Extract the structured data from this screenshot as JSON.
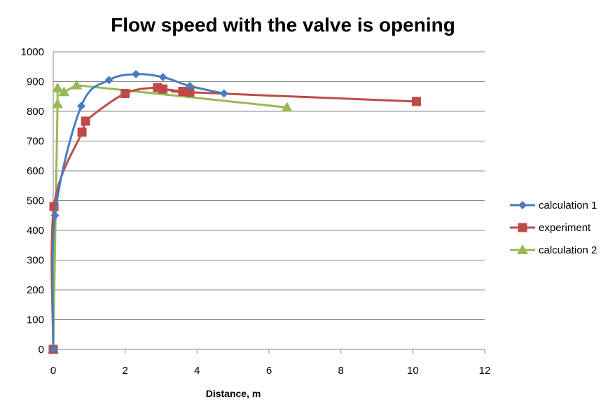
{
  "chart_data": {
    "type": "scatter",
    "title": "Flow speed with the valve is opening",
    "xlabel": "Distance, m",
    "ylabel": "",
    "xlim": [
      0,
      12
    ],
    "ylim": [
      0,
      1000
    ],
    "xticks": [
      0,
      2,
      4,
      6,
      8,
      10,
      12
    ],
    "yticks": [
      0,
      100,
      200,
      300,
      400,
      500,
      600,
      700,
      800,
      900,
      1000
    ],
    "grid": "horizontal",
    "legend_position": "right",
    "series": [
      {
        "name": "calculation 1",
        "color": "#4a7ebb",
        "marker": "diamond",
        "smooth": true,
        "points": [
          [
            0,
            0
          ],
          [
            0.05,
            450
          ],
          [
            0.78,
            818
          ],
          [
            1.55,
            905
          ],
          [
            2.3,
            925
          ],
          [
            3.05,
            915
          ],
          [
            3.8,
            885
          ],
          [
            4.75,
            860
          ]
        ]
      },
      {
        "name": "experiment",
        "color": "#be4b48",
        "marker": "square",
        "smooth": true,
        "points": [
          [
            0,
            0
          ],
          [
            0.02,
            480
          ],
          [
            0.8,
            730
          ],
          [
            0.9,
            767
          ],
          [
            2.0,
            860
          ],
          [
            2.9,
            880
          ],
          [
            3.05,
            875
          ],
          [
            3.6,
            867
          ],
          [
            3.8,
            864
          ],
          [
            10.1,
            833
          ]
        ]
      },
      {
        "name": "calculation 2",
        "color": "#98b954",
        "marker": "triangle",
        "smooth": false,
        "points": [
          [
            0,
            0
          ],
          [
            0.12,
            825
          ],
          [
            0.12,
            878
          ],
          [
            0.3,
            865
          ],
          [
            0.65,
            888
          ],
          [
            6.5,
            813
          ]
        ]
      }
    ]
  }
}
